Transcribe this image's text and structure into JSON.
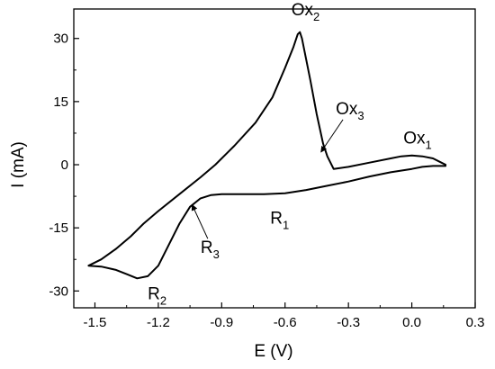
{
  "chart_data": {
    "type": "line",
    "title": "",
    "xlabel": "E (V)",
    "ylabel": "I (mA)",
    "xlim": [
      -1.6,
      0.3
    ],
    "ylim": [
      -34,
      37
    ],
    "xticks": [
      -1.5,
      -1.2,
      -0.9,
      -0.6,
      -0.3,
      0.0,
      0.3
    ],
    "xtick_labels": [
      "-1.5",
      "-1.2",
      "-0.9",
      "-0.6",
      "-0.3",
      "0.0",
      "0.3"
    ],
    "yticks": [
      -30,
      -15,
      0,
      15,
      30
    ],
    "ytick_labels": [
      "-30",
      "-15",
      "0",
      "15",
      "30"
    ],
    "grid": false,
    "series": [
      {
        "color": "#000000",
        "x": [
          0.16,
          0.14,
          0.1,
          0.05,
          0.0,
          -0.05,
          -0.1,
          -0.2,
          -0.3,
          -0.37,
          -0.4,
          -0.42,
          -0.45,
          -0.48,
          -0.5,
          -0.52,
          -0.53,
          -0.54,
          -0.56,
          -0.6,
          -0.66,
          -0.74,
          -0.84,
          -0.93,
          -1.0,
          -1.1,
          -1.2,
          -1.27,
          -1.33,
          -1.4,
          -1.47,
          -1.53,
          -1.47,
          -1.4,
          -1.35,
          -1.3,
          -1.25,
          -1.2,
          -1.15,
          -1.1,
          -1.05,
          -1.0,
          -0.95,
          -0.9,
          -0.8,
          -0.7,
          -0.6,
          -0.5,
          -0.4,
          -0.3,
          -0.2,
          -0.1,
          0.0,
          0.05,
          0.1,
          0.16
        ],
        "y": [
          0.0,
          0.5,
          1.5,
          2.0,
          2.2,
          2.0,
          1.5,
          0.5,
          -0.5,
          -1.0,
          2.0,
          5.0,
          12.0,
          20.0,
          25.0,
          30.0,
          31.5,
          31.0,
          28.0,
          23.0,
          16.0,
          10.0,
          4.5,
          0.0,
          -3.0,
          -7.0,
          -11.0,
          -14.0,
          -17.0,
          -20.0,
          -22.5,
          -24.0,
          -24.2,
          -25.0,
          -26.0,
          -27.0,
          -26.5,
          -24.0,
          -19.0,
          -14.0,
          -10.0,
          -8.0,
          -7.2,
          -7.0,
          -7.0,
          -7.0,
          -6.8,
          -6.0,
          -5.0,
          -4.0,
          -2.8,
          -1.8,
          -1.0,
          -0.5,
          -0.3,
          -0.3
        ]
      }
    ],
    "annotations": [
      {
        "main": "Ox",
        "sub": "2",
        "x": -0.57,
        "y": 35.5,
        "arrow": false
      },
      {
        "main": "Ox",
        "sub": "3",
        "x": -0.36,
        "y": 12.0,
        "arrow": true,
        "ax": -0.43,
        "ay": 3.0
      },
      {
        "main": "Ox",
        "sub": "1",
        "x": -0.04,
        "y": 5.0,
        "arrow": false
      },
      {
        "main": "R",
        "sub": "1",
        "x": -0.67,
        "y": -14.0,
        "arrow": false
      },
      {
        "main": "R",
        "sub": "3",
        "x": -1.0,
        "y": -21.0,
        "arrow": true,
        "ax": -1.04,
        "ay": -9.5
      },
      {
        "main": "R",
        "sub": "2",
        "x": -1.25,
        "y": -32.0,
        "arrow": false
      }
    ]
  }
}
